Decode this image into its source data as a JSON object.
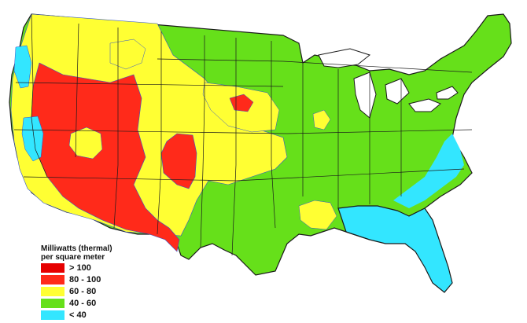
{
  "map": {
    "legend": {
      "title_line1": "Milliwatts (thermal)",
      "title_line2": "per square meter",
      "items": [
        {
          "label": "> 100",
          "color": "#e60000"
        },
        {
          "label": "80 - 100",
          "color": "#ff2a1a"
        },
        {
          "label": "60 - 80",
          "color": "#ffff33"
        },
        {
          "label": "40 - 60",
          "color": "#66e01a"
        },
        {
          "label": "< 40",
          "color": "#33e6ff"
        }
      ]
    },
    "colors": {
      "very_high": "#e60000",
      "high": "#ff2a1a",
      "medium": "#ffff33",
      "low": "#66e01a",
      "very_low": "#33e6ff",
      "boundary": "#1a1a1a",
      "contour": "#3355cc"
    }
  }
}
